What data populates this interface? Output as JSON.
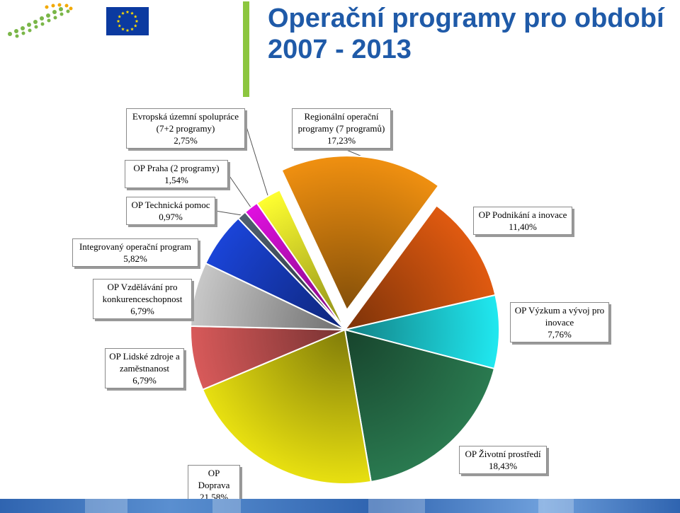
{
  "header": {
    "title": "Operační programy pro období 2007 - 2013"
  },
  "colors": {
    "title": "#1f5aa8",
    "accent_bar": "#8cc63f",
    "eu_flag": "#0b3aa0",
    "eu_stars": "#ffdd00"
  },
  "icons": {
    "logo": "logo-icon",
    "flag": "eu-flag-icon"
  },
  "chart_data": {
    "type": "pie",
    "exploded_slice": "Regionální operační programy (7 programů)",
    "slices": [
      {
        "line1": "Regionální operační",
        "line2": "programy (7 programů)",
        "value_label": "17,23%",
        "value": 17.23,
        "color": "#f09010"
      },
      {
        "line1": "OP Podnikání a inovace",
        "line2": "",
        "value_label": "11,40%",
        "value": 11.4,
        "color": "#e05a10"
      },
      {
        "line1": "OP Výzkum a vývoj pro",
        "line2": "inovace",
        "value_label": "7,76%",
        "value": 7.76,
        "color": "#20e8f0"
      },
      {
        "line1": "OP Životní prostředí",
        "line2": "",
        "value_label": "18,43%",
        "value": 18.43,
        "color": "#2a7a50"
      },
      {
        "line1": "OP Doprava",
        "line2": "",
        "value_label": "21,58%",
        "value": 21.58,
        "color": "#e8e010"
      },
      {
        "line1": "OP Lidské zdroje a",
        "line2": "zaměstnanost",
        "value_label": "6,79%",
        "value": 6.79,
        "color": "#d85a5a"
      },
      {
        "line1": "OP Vzdělávání pro",
        "line2": "konkurenceschopnost",
        "value_label": "6,79%",
        "value": 6.79,
        "color": "#c8c8c8"
      },
      {
        "line1": "Integrovaný operační program",
        "line2": "",
        "value_label": "5,82%",
        "value": 5.82,
        "color": "#1a44d8"
      },
      {
        "line1": "OP Technická pomoc",
        "line2": "",
        "value_label": "0,97%",
        "value": 0.97,
        "color": "#506070"
      },
      {
        "line1": "OP Praha (2 programy)",
        "line2": "",
        "value_label": "1,54%",
        "value": 1.54,
        "color": "#e010e0"
      },
      {
        "line1": "Evropská územní spolupráce",
        "line2": "(7+2 programy)",
        "value_label": "2,75%",
        "value": 2.75,
        "color": "#ffff30"
      }
    ]
  }
}
